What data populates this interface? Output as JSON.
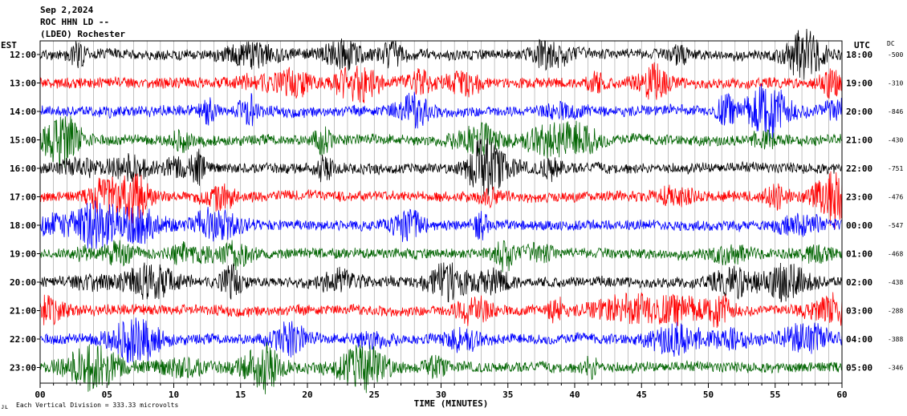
{
  "header": {
    "date": "Sep 2,2024",
    "station": "ROC HHN LD --",
    "network": "(LDEO) Rochester"
  },
  "chart_data": {
    "type": "line",
    "title": "",
    "left_axis_label": "EST",
    "right_axis_label": "UTC",
    "dc_label": "DC",
    "xlabel": "TIME (MINUTES)",
    "xlim": [
      0,
      60
    ],
    "x_ticks": [
      "00",
      "05",
      "10",
      "15",
      "20",
      "25",
      "30",
      "35",
      "40",
      "45",
      "50",
      "55",
      "60"
    ],
    "vertical_division": "Each Vertical Division =  333.33 microvolts",
    "corner_mark": "ᴊʟ",
    "grid": true,
    "trace_colors": [
      "#000000",
      "#ff0000",
      "#0000ff",
      "#006400"
    ],
    "rows": [
      {
        "local": "12:00",
        "utc": "18:00",
        "dc": "-500",
        "color": "#000000"
      },
      {
        "local": "13:00",
        "utc": "19:00",
        "dc": "-310",
        "color": "#ff0000"
      },
      {
        "local": "14:00",
        "utc": "20:00",
        "dc": "-846",
        "color": "#0000ff"
      },
      {
        "local": "15:00",
        "utc": "21:00",
        "dc": "-430",
        "color": "#006400"
      },
      {
        "local": "16:00",
        "utc": "22:00",
        "dc": "-751",
        "color": "#000000"
      },
      {
        "local": "17:00",
        "utc": "23:00",
        "dc": "-476",
        "color": "#ff0000"
      },
      {
        "local": "18:00",
        "utc": "00:00",
        "dc": "-547",
        "color": "#0000ff"
      },
      {
        "local": "19:00",
        "utc": "01:00",
        "dc": "-468",
        "color": "#006400"
      },
      {
        "local": "20:00",
        "utc": "02:00",
        "dc": "-438",
        "color": "#000000"
      },
      {
        "local": "21:00",
        "utc": "03:00",
        "dc": "-288",
        "color": "#ff0000"
      },
      {
        "local": "22:00",
        "utc": "04:00",
        "dc": "-388",
        "color": "#0000ff"
      },
      {
        "local": "23:00",
        "utc": "05:00",
        "dc": "-346",
        "color": "#006400"
      }
    ]
  }
}
